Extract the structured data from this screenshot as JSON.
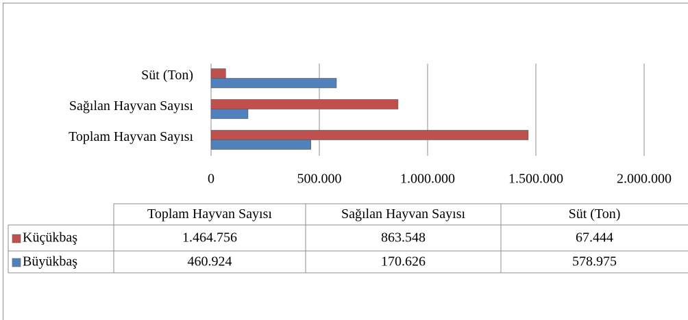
{
  "chart_data": {
    "type": "bar",
    "orientation": "horizontal",
    "categories": [
      "Toplam Hayvan Sayısı",
      "Sağılan Hayvan Sayısı",
      "Süt (Ton)"
    ],
    "series": [
      {
        "name": "Küçükbaş",
        "color": "#c0504d",
        "values": [
          1464756,
          863548,
          67444
        ],
        "value_labels": [
          "1.464.756",
          "863.548",
          "67.444"
        ]
      },
      {
        "name": "Büyükbaş",
        "color": "#4f81bd",
        "values": [
          460924,
          170626,
          578975
        ],
        "value_labels": [
          "460.924",
          "170.626",
          "578.975"
        ]
      }
    ],
    "xlim": [
      0,
      2000000
    ],
    "xticks": [
      0,
      {
        "value": 500000,
        "label": "500.000"
      },
      {
        "value": 1000000,
        "label": "1.000.000"
      },
      {
        "value": 1500000,
        "label": "1.500.000"
      },
      {
        "value": 2000000,
        "label": "2.000.000"
      }
    ],
    "grid": true
  }
}
